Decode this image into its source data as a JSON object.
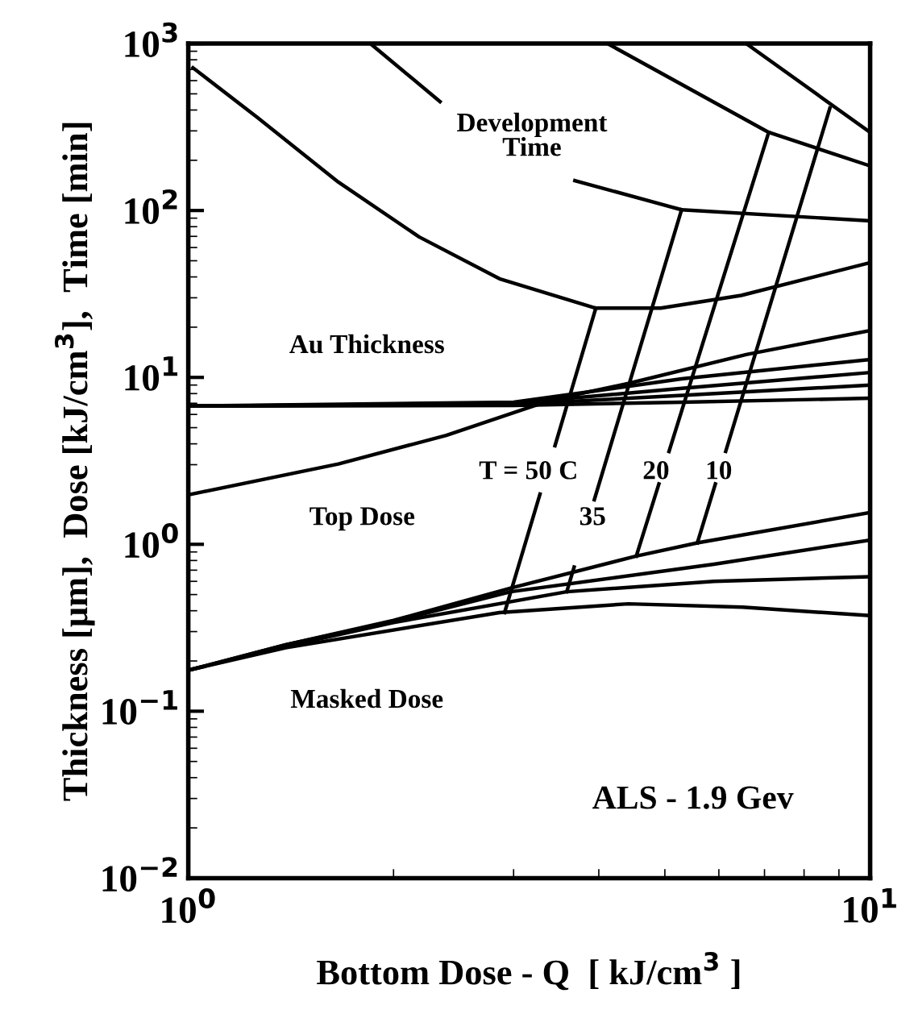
{
  "chart_data": {
    "type": "line",
    "xlabel": "Bottom Dose - Q  [ kJ/cm$^{3}$ ]",
    "ylabel": "Thickness [μm],  Dose [kJ/cm$^{3}$],  Time [min]",
    "log": "xy",
    "grid": false,
    "marker": "none",
    "line_style": "solid",
    "xlim": [
      1,
      10
    ],
    "xticks": [
      {
        "value": 1,
        "label": "10$^{0}$"
      },
      {
        "value": 10,
        "label": "10$^{1}$"
      }
    ],
    "ylim": [
      0.01,
      1000
    ],
    "yticks": [
      {
        "value": 0.01,
        "label": "10$^{−2}$"
      },
      {
        "value": 0.1,
        "label": "10$^{−1}$"
      },
      {
        "value": 1,
        "label": "10$^{0}$"
      },
      {
        "value": 10,
        "label": "10$^{1}$"
      },
      {
        "value": 100,
        "label": "10$^{2}$"
      },
      {
        "value": 1000,
        "label": "10$^{3}$"
      }
    ],
    "series": [
      {
        "color": "#000000",
        "x": [
          1.016,
          1.264,
          1.66,
          2.18,
          2.86,
          3.96,
          4.93,
          6.47,
          10
        ],
        "values": [
          716,
          360,
          148,
          69.5,
          39,
          26,
          26,
          31,
          48.7
        ]
      },
      {
        "color": "#000000",
        "x": [
          1.85,
          2.34
        ],
        "values": [
          1000,
          449
        ]
      },
      {
        "color": "#000000",
        "x": [
          4.12,
          7.1,
          10
        ],
        "values": [
          1000,
          294,
          185
        ]
      },
      {
        "color": "#000000",
        "x": [
          6.58,
          10
        ],
        "values": [
          1000,
          294
        ]
      },
      {
        "color": "#000000",
        "x": [
          3.69,
          5.29,
          10
        ],
        "values": [
          151,
          101,
          86.7
        ]
      },
      {
        "color": "#000000",
        "x": [
          1,
          1.66,
          2.39,
          3.42,
          4.42,
          6.58,
          10
        ],
        "values": [
          1.98,
          3.03,
          4.5,
          7.36,
          9.2,
          13.7,
          19.1
        ]
      },
      {
        "color": "#000000",
        "x": [
          1,
          3,
          5.29,
          10
        ],
        "values": [
          6.73,
          7.1,
          9.8,
          12.8
        ]
      },
      {
        "color": "#000000",
        "x": [
          1,
          3,
          5.3,
          10
        ],
        "values": [
          6.73,
          7.0,
          8.6,
          10.7
        ]
      },
      {
        "color": "#000000",
        "x": [
          1,
          3,
          5.3,
          10
        ],
        "values": [
          6.73,
          6.9,
          7.8,
          9.0
        ]
      },
      {
        "color": "#000000",
        "x": [
          1,
          3,
          5.3,
          10
        ],
        "values": [
          6.73,
          6.8,
          7.1,
          7.5
        ]
      },
      {
        "color": "#000000",
        "x": [
          1,
          1.39,
          2.0,
          2.97,
          4.54,
          5.58,
          10
        ],
        "values": [
          0.176,
          0.25,
          0.35,
          0.546,
          0.85,
          1.02,
          1.55
        ]
      },
      {
        "color": "#000000",
        "x": [
          1,
          1.39,
          2.0,
          2.97,
          5.9,
          10
        ],
        "values": [
          0.176,
          0.25,
          0.345,
          0.52,
          0.76,
          1.06
        ]
      },
      {
        "color": "#000000",
        "x": [
          1,
          1.39,
          2.0,
          3.59,
          5.9,
          10
        ],
        "values": [
          0.176,
          0.245,
          0.34,
          0.52,
          0.6,
          0.64
        ]
      },
      {
        "color": "#000000",
        "x": [
          1,
          1.39,
          2.86,
          4.42,
          6.5,
          10
        ],
        "values": [
          0.176,
          0.24,
          0.39,
          0.44,
          0.42,
          0.374
        ]
      },
      {
        "color": "#000000",
        "x": [
          2.91,
          3.28,
          3.36,
          3.45,
          3.96
        ],
        "values": [
          0.39,
          2.0,
          null,
          3.9,
          26
        ]
      },
      {
        "color": "#000000",
        "x": [
          3.59,
          3.68,
          3.8,
          3.94,
          5.29
        ],
        "values": [
          0.52,
          0.73,
          null,
          1.85,
          101
        ]
      },
      {
        "color": "#000000",
        "x": [
          4.54,
          4.9,
          4.98,
          5.07,
          7.1
        ],
        "values": [
          0.85,
          2.3,
          null,
          3.6,
          294
        ]
      },
      {
        "color": "#000000",
        "x": [
          5.58,
          5.93,
          6.03,
          6.14,
          8.73
        ],
        "values": [
          1.02,
          2.3,
          null,
          3.6,
          411
        ]
      }
    ],
    "annotations": [
      "Development\nTime",
      "Au Thickness",
      "Top Dose",
      "Masked Dose",
      "T = 50 C",
      "35",
      "20",
      "10",
      "ALS - 1.9 Gev"
    ]
  }
}
